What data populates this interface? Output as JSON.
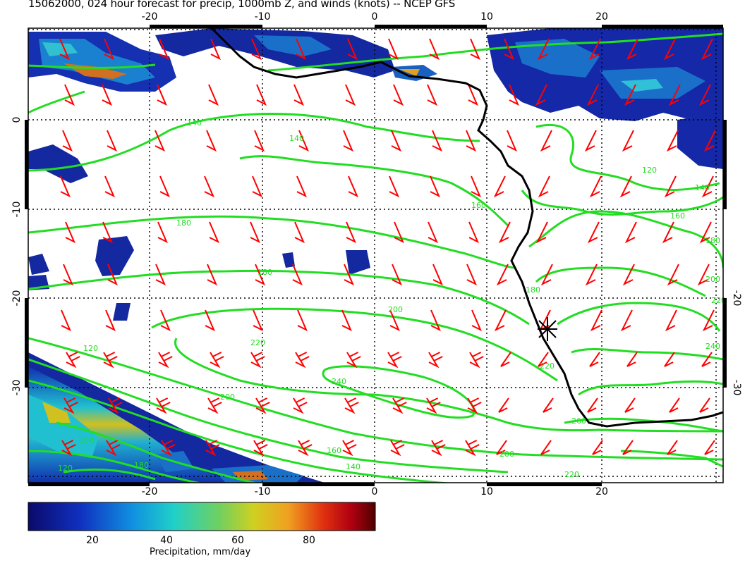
{
  "title": "15062000, 024 hour forecast for precip, 1000mb Z, and winds (knots) -- NCEP GFS",
  "axes": {
    "bottom_lon_labels": [
      "-20",
      "-10",
      "0",
      "10",
      "20"
    ],
    "top_lon_labels": [
      "-20",
      "-10",
      "0",
      "10",
      "20"
    ],
    "left_lat_labels": [
      "0",
      "-10",
      "-20",
      "-30"
    ],
    "right_lat_labels": [
      "-20",
      "-30"
    ]
  },
  "contour_labels": [
    "140",
    "140",
    "180",
    "180",
    "200",
    "220",
    "240",
    "160",
    "120",
    "120",
    "140",
    "160",
    "180",
    "200",
    "220",
    "240",
    "260",
    "220",
    "180",
    "160",
    "200",
    "220",
    "200",
    "180",
    "160",
    "140",
    "120"
  ],
  "colorbar": {
    "title": "Precipitation, mm/day",
    "tick_labels": [
      "20",
      "40",
      "60",
      "80"
    ],
    "colors": [
      "#0a0a7a",
      "#1030c0",
      "#1aa0e0",
      "#20d0c0",
      "#60d060",
      "#c8c820",
      "#f0a020",
      "#e04010",
      "#c00010",
      "#600000"
    ]
  },
  "colors": {
    "contour": "#22dd22",
    "wind_barb": "#ff0000",
    "coastline": "#000000",
    "grid": "#000000"
  },
  "marker": "station-star"
}
